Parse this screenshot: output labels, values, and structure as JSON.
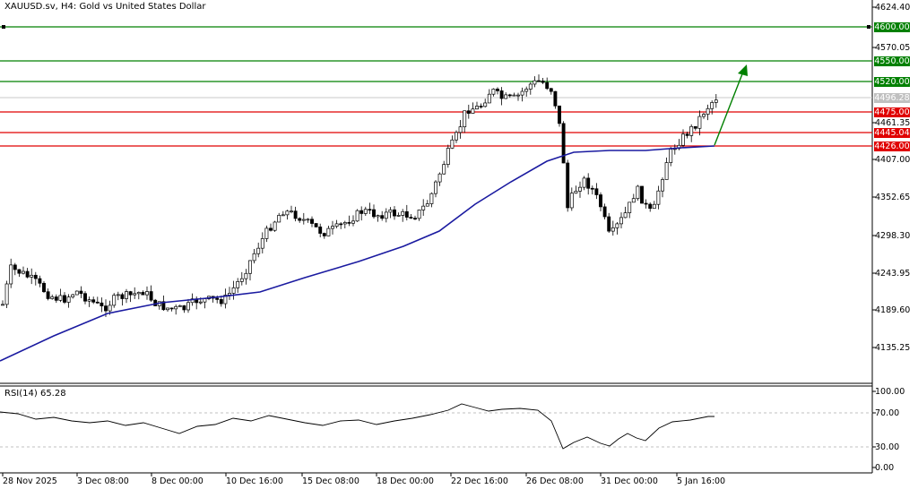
{
  "symbol_title": "XAUUSD.sv, H4:  Gold vs United States Dollar",
  "rsi_title": "RSI(14) 65.28",
  "price_axis": [
    {
      "label": "4624.40"
    },
    {
      "label": "4570.05"
    },
    {
      "label": "4461.35"
    },
    {
      "label": "4407.00"
    },
    {
      "label": "4352.65"
    },
    {
      "label": "4298.30"
    },
    {
      "label": "4243.95"
    },
    {
      "label": "4189.60"
    },
    {
      "label": "4135.25"
    }
  ],
  "rsi_axis": [
    {
      "label": "100.00"
    },
    {
      "label": "70.00"
    },
    {
      "label": "30.00"
    },
    {
      "label": "0.00"
    }
  ],
  "level_tags": [
    {
      "label": "4600.00",
      "color": "#008000"
    },
    {
      "label": "4550.00",
      "color": "#008000"
    },
    {
      "label": "4520.00",
      "color": "#008000"
    },
    {
      "label": "4496.28",
      "color": "#c0c0c0"
    },
    {
      "label": "4475.00",
      "color": "#e00000"
    },
    {
      "label": "4445.04",
      "color": "#e00000"
    },
    {
      "label": "4426.00",
      "color": "#e00000"
    }
  ],
  "time_axis": [
    {
      "label": "28 Nov 2025"
    },
    {
      "label": "3 Dec 08:00"
    },
    {
      "label": "8 Dec 00:00"
    },
    {
      "label": "10 Dec 16:00"
    },
    {
      "label": "15 Dec 08:00"
    },
    {
      "label": "18 Dec 00:00"
    },
    {
      "label": "22 Dec 16:00"
    },
    {
      "label": "26 Dec 08:00"
    },
    {
      "label": "31 Dec 00:00"
    },
    {
      "label": "5 Jan 16:00"
    }
  ],
  "colors": {
    "support_lines": "#e00000",
    "resistance_lines": "#008000",
    "moving_average": "#1a1aa0",
    "arrow": "#008000",
    "candles": "#000000"
  }
}
